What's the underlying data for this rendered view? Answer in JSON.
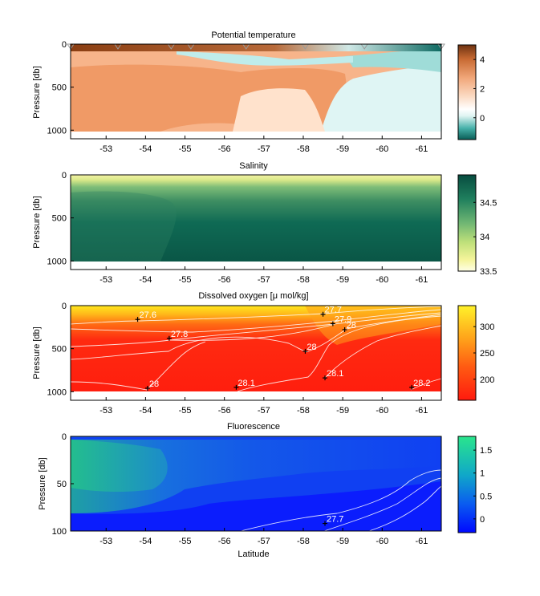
{
  "chart_data": [
    {
      "type": "heatmap",
      "title": "Potential temperature",
      "ylabel": "Pressure [db]",
      "xlabel": "",
      "xlim": [
        -52.1,
        -61.5
      ],
      "ylim": [
        1100,
        0
      ],
      "xticks": [
        "-53",
        "-54",
        "-55",
        "-56",
        "-57",
        "-58",
        "-59",
        "-60",
        "-61"
      ],
      "yticks": [
        "0",
        "500",
        "1000"
      ],
      "colorbar": {
        "min": -1.5,
        "max": 5,
        "ticks": [
          "4",
          "2",
          "0"
        ]
      },
      "station_markers_x": [
        -52.1,
        -53.3,
        -54.65,
        -55.15,
        -56.55,
        -58.05,
        -59.55,
        -61.5
      ]
    },
    {
      "type": "heatmap",
      "title": "Salinity",
      "ylabel": "Pressure [db]",
      "xlabel": "",
      "xlim": [
        -52.1,
        -61.5
      ],
      "ylim": [
        1100,
        0
      ],
      "xticks": [
        "-53",
        "-54",
        "-55",
        "-56",
        "-57",
        "-58",
        "-59",
        "-60",
        "-61"
      ],
      "yticks": [
        "0",
        "500",
        "1000"
      ],
      "colorbar": {
        "min": 33.5,
        "max": 34.9,
        "ticks": [
          "34.5",
          "34",
          "33.5"
        ]
      }
    },
    {
      "type": "heatmap",
      "title": "Dissolved oxygen [μ mol/kg]",
      "ylabel": "Pressure [db]",
      "xlabel": "",
      "xlim": [
        -52.1,
        -61.5
      ],
      "ylim": [
        1100,
        0
      ],
      "xticks": [
        "-53",
        "-54",
        "-55",
        "-56",
        "-57",
        "-58",
        "-59",
        "-60",
        "-61"
      ],
      "yticks": [
        "0",
        "500",
        "1000"
      ],
      "colorbar": {
        "min": 160,
        "max": 340,
        "ticks": [
          "300",
          "250",
          "200"
        ]
      },
      "contour_labels": [
        {
          "text": "27.6",
          "x": -53.8,
          "y": 160
        },
        {
          "text": "27.7",
          "x": -58.5,
          "y": 100
        },
        {
          "text": "27.8",
          "x": -54.6,
          "y": 380
        },
        {
          "text": "27.9",
          "x": -58.75,
          "y": 210
        },
        {
          "text": "28",
          "x": -59.05,
          "y": 280
        },
        {
          "text": "28",
          "x": -58.05,
          "y": 530
        },
        {
          "text": "28",
          "x": -54.05,
          "y": 960
        },
        {
          "text": "28.1",
          "x": -58.55,
          "y": 840
        },
        {
          "text": "28.1",
          "x": -56.3,
          "y": 950
        },
        {
          "text": "28.2",
          "x": -60.75,
          "y": 950
        }
      ]
    },
    {
      "type": "heatmap",
      "title": "Fluorescence",
      "ylabel": "Pressure [db]",
      "xlabel": "Latitude",
      "xlim": [
        -52.1,
        -61.5
      ],
      "ylim": [
        100,
        0
      ],
      "xticks": [
        "-53",
        "-54",
        "-55",
        "-56",
        "-57",
        "-58",
        "-59",
        "-60",
        "-61"
      ],
      "yticks": [
        "0",
        "50",
        "100"
      ],
      "colorbar": {
        "min": -0.3,
        "max": 1.8,
        "ticks": [
          "1.5",
          "1",
          "0.5",
          "0"
        ]
      },
      "contour_labels": [
        {
          "text": "27.7",
          "x": -58.55,
          "y": 92
        }
      ]
    }
  ]
}
